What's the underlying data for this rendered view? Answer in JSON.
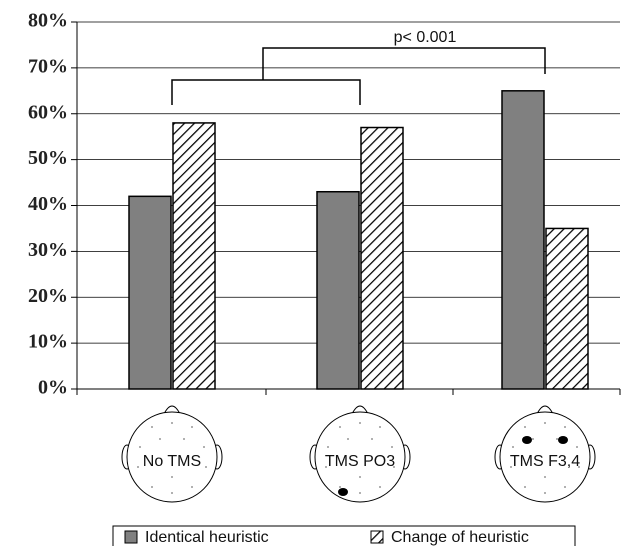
{
  "chart_data": {
    "type": "bar",
    "categories": [
      "No TMS",
      "TMS PO3",
      "TMS F3,4"
    ],
    "series": [
      {
        "name": "Identical heuristic",
        "color": "#808080",
        "values": [
          42,
          43,
          65
        ]
      },
      {
        "name": "Change of heuristic",
        "color": "#000000",
        "hatch": true,
        "values": [
          58,
          57,
          35
        ]
      }
    ],
    "ylim": [
      0,
      80
    ],
    "yticks": [
      {
        "value": 0,
        "label": "0%"
      },
      {
        "value": 10,
        "label": "10%"
      },
      {
        "value": 20,
        "label": "20%"
      },
      {
        "value": 30,
        "label": "30%"
      },
      {
        "value": 40,
        "label": "40%"
      },
      {
        "value": 50,
        "label": "50%"
      },
      {
        "value": 60,
        "label": "60%"
      },
      {
        "value": 70,
        "label": "70%"
      },
      {
        "value": 80,
        "label": "80%"
      }
    ],
    "grid": true,
    "annotation": "p< 0.001",
    "legend": "bottom"
  }
}
